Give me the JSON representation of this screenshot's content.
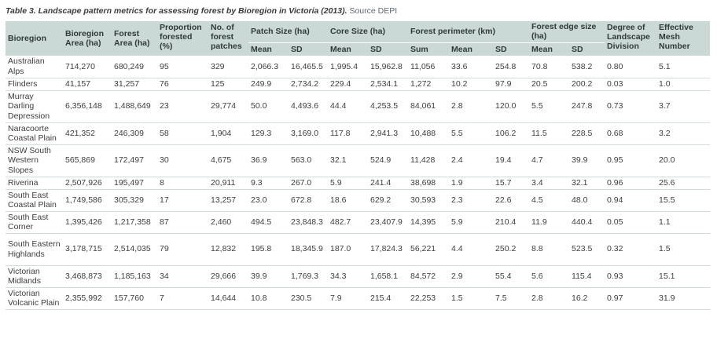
{
  "caption": {
    "title": "Table 3. Landscape pattern metrics for assessing forest by Bioregion in Victoria (2013).",
    "source": "Source DEPI"
  },
  "headers": {
    "bioregion": "Bioregion",
    "bioregion_area": "Bioregion Area (ha)",
    "forest_area": "Forest Area (ha)",
    "proportion_forested": "Proportion forested (%)",
    "num_patches": "No. of forest patches",
    "patch_size": "Patch Size (ha)",
    "core_size": "Core Size (ha)",
    "forest_perimeter": "Forest perimeter (km)",
    "forest_edge_size": "Forest edge size (ha)",
    "degree_division": "Degree of Landscape Division",
    "effective_mesh": "Effective Mesh Number",
    "mean": "Mean",
    "sd": "SD",
    "sum": "Sum"
  },
  "rows": [
    {
      "bioregion": "Australian Alps",
      "bio_area": "714,270",
      "forest_area": "680,249",
      "prop": "95",
      "patches": "329",
      "patch_mean": "2,066.3",
      "patch_sd": "16,465.5",
      "core_mean": "1,995.4",
      "core_sd": "15,962.8",
      "perim_sum": "11,056",
      "perim_mean": "33.6",
      "perim_sd": "254.8",
      "edge_mean": "70.8",
      "edge_sd": "538.2",
      "division": "0.80",
      "mesh": "5.1"
    },
    {
      "bioregion": "Flinders",
      "bio_area": "41,157",
      "forest_area": "31,257",
      "prop": "76",
      "patches": "125",
      "patch_mean": "249.9",
      "patch_sd": "2,734.2",
      "core_mean": "229.4",
      "core_sd": "2,534.1",
      "perim_sum": "1,272",
      "perim_mean": "10.2",
      "perim_sd": "97.9",
      "edge_mean": "20.5",
      "edge_sd": "200.2",
      "division": "0.03",
      "mesh": "1.0"
    },
    {
      "bioregion": "Murray Darling Depression",
      "bio_area": "6,356,148",
      "forest_area": "1,488,649",
      "prop": "23",
      "patches": "29,774",
      "patch_mean": "50.0",
      "patch_sd": "4,493.6",
      "core_mean": "44.4",
      "core_sd": "4,253.5",
      "perim_sum": "84,061",
      "perim_mean": "2.8",
      "perim_sd": "120.0",
      "edge_mean": "5.5",
      "edge_sd": "247.8",
      "division": "0.73",
      "mesh": "3.7"
    },
    {
      "bioregion": "Naracoorte Coastal Plain",
      "bio_area": "421,352",
      "forest_area": "246,309",
      "prop": "58",
      "patches": "1,904",
      "patch_mean": "129.3",
      "patch_sd": "3,169.0",
      "core_mean": "117.8",
      "core_sd": "2,941.3",
      "perim_sum": "10,488",
      "perim_mean": "5.5",
      "perim_sd": "106.2",
      "edge_mean": "11.5",
      "edge_sd": "228.5",
      "division": "0.68",
      "mesh": "3.2"
    },
    {
      "bioregion": "NSW South Western Slopes",
      "bio_area": "565,869",
      "forest_area": "172,497",
      "prop": "30",
      "patches": "4,675",
      "patch_mean": "36.9",
      "patch_sd": "563.0",
      "core_mean": "32.1",
      "core_sd": "524.9",
      "perim_sum": "11,428",
      "perim_mean": "2.4",
      "perim_sd": "19.4",
      "edge_mean": "4.7",
      "edge_sd": "39.9",
      "division": "0.95",
      "mesh": "20.0"
    },
    {
      "bioregion": "Riverina",
      "bio_area": "2,507,926",
      "forest_area": "195,497",
      "prop": "8",
      "patches": "20,911",
      "patch_mean": "9.3",
      "patch_sd": "267.0",
      "core_mean": "5.9",
      "core_sd": "241.4",
      "perim_sum": "38,698",
      "perim_mean": "1.9",
      "perim_sd": "15.7",
      "edge_mean": "3.4",
      "edge_sd": "32.1",
      "division": "0.96",
      "mesh": "25.6"
    },
    {
      "bioregion": "South East Coastal Plain",
      "bio_area": "1,749,586",
      "forest_area": "305,329",
      "prop": "17",
      "patches": "13,257",
      "patch_mean": "23.0",
      "patch_sd": "672.8",
      "core_mean": "18.6",
      "core_sd": "629.2",
      "perim_sum": "30,593",
      "perim_mean": "2.3",
      "perim_sd": "22.6",
      "edge_mean": "4.5",
      "edge_sd": "48.0",
      "division": "0.94",
      "mesh": "15.5"
    },
    {
      "bioregion": "South East Corner",
      "bio_area": "1,395,426",
      "forest_area": "1,217,358",
      "prop": "87",
      "patches": "2,460",
      "patch_mean": "494.5",
      "patch_sd": "23,848.3",
      "core_mean": "482.7",
      "core_sd": "23,407.9",
      "perim_sum": "14,395",
      "perim_mean": "5.9",
      "perim_sd": "210.4",
      "edge_mean": "11.9",
      "edge_sd": "440.4",
      "division": "0.05",
      "mesh": "1.1"
    },
    {
      "bioregion": "South Eastern Highlands",
      "bio_area": "3,178,715",
      "forest_area": "2,514,035",
      "prop": "79",
      "patches": "12,832",
      "patch_mean": "195.8",
      "patch_sd": "18,345.9",
      "core_mean": "187.0",
      "core_sd": "17,824.3",
      "perim_sum": "56,221",
      "perim_mean": "4.4",
      "perim_sd": "250.2",
      "edge_mean": "8.8",
      "edge_sd": "523.5",
      "division": "0.32",
      "mesh": "1.5"
    },
    {
      "bioregion": "Victorian Midlands",
      "bio_area": "3,468,873",
      "forest_area": "1,185,163",
      "prop": "34",
      "patches": "29,666",
      "patch_mean": "39.9",
      "patch_sd": "1,769.3",
      "core_mean": "34.3",
      "core_sd": "1,658.1",
      "perim_sum": "84,572",
      "perim_mean": "2.9",
      "perim_sd": "55.4",
      "edge_mean": "5.6",
      "edge_sd": "115.4",
      "division": "0.93",
      "mesh": "15.1"
    },
    {
      "bioregion": "Victorian Volcanic Plain",
      "bio_area": "2,355,992",
      "forest_area": "157,760",
      "prop": "7",
      "patches": "14,644",
      "patch_mean": "10.8",
      "patch_sd": "230.5",
      "core_mean": "7.9",
      "core_sd": "215.4",
      "perim_sum": "22,253",
      "perim_mean": "1.5",
      "perim_sd": "7.5",
      "edge_mean": "2.8",
      "edge_sd": "16.2",
      "division": "0.97",
      "mesh": "31.9"
    }
  ]
}
